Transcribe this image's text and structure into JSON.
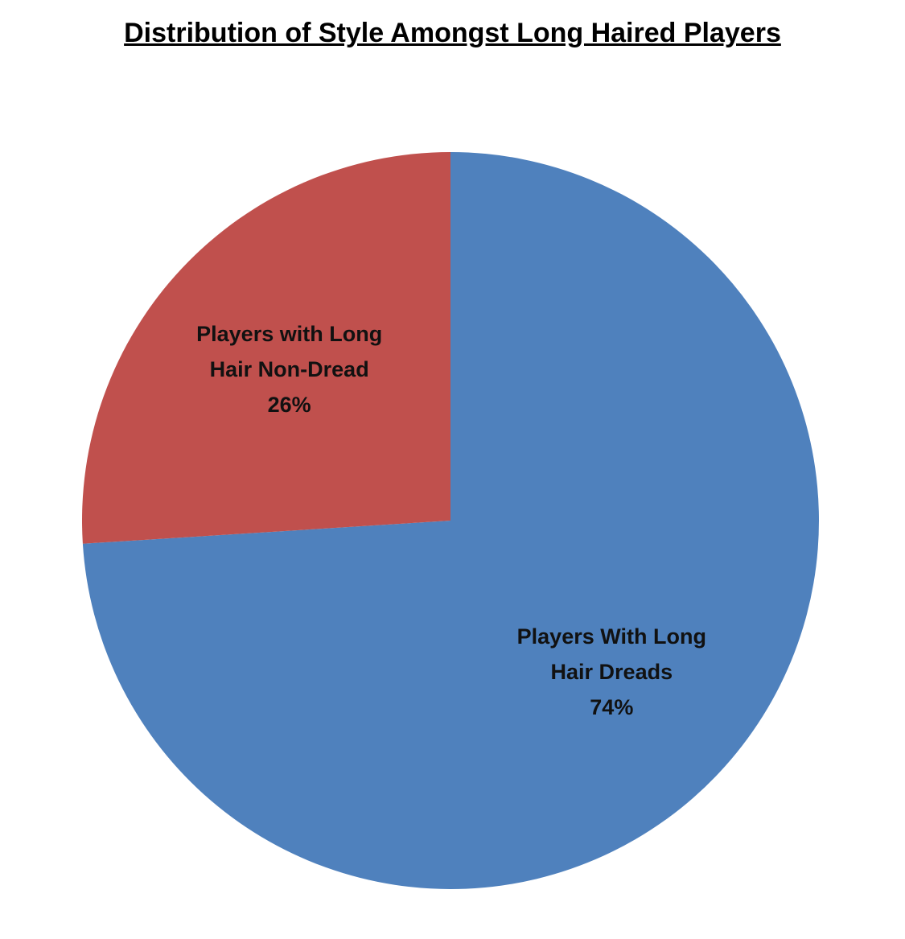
{
  "chart_data": {
    "type": "pie",
    "title": "Distribution of Style Amongst Long Haired Players",
    "categories": [
      "Players With Long Hair  Dreads",
      "Players with Long Hair Non-Dread"
    ],
    "values": [
      74,
      26
    ],
    "value_labels": [
      "74%",
      "26%"
    ],
    "colors": [
      "#4f81bd",
      "#c0504d"
    ]
  }
}
